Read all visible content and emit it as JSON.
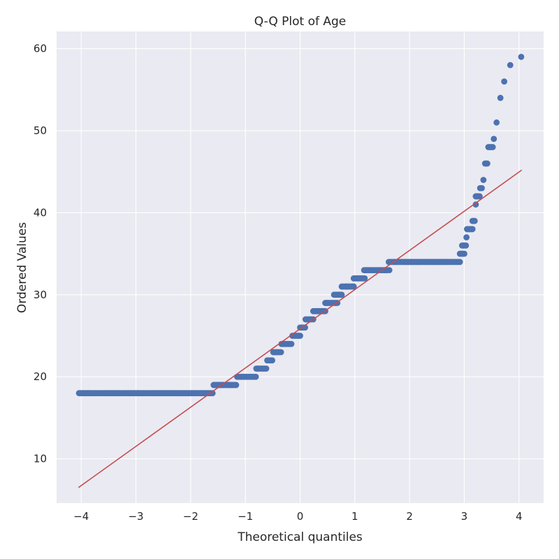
{
  "chart_data": {
    "type": "scatter",
    "title": "Q-Q Plot of Age",
    "xlabel": "Theoretical quantiles",
    "ylabel": "Ordered Values",
    "xlim": [
      -4.45,
      4.45
    ],
    "ylim": [
      4.6,
      62.1
    ],
    "x_ticks": [
      -4,
      -3,
      -2,
      -1,
      0,
      1,
      2,
      3,
      4
    ],
    "x_tick_labels": [
      "−4",
      "−3",
      "−2",
      "−1",
      "0",
      "1",
      "2",
      "3",
      "4"
    ],
    "y_ticks": [
      10,
      20,
      30,
      40,
      50,
      60
    ],
    "y_tick_labels": [
      "10",
      "20",
      "30",
      "40",
      "50",
      "60"
    ],
    "grid": true,
    "colors": {
      "points": "#4C72B0",
      "fit_line": "#C44E52",
      "background": "#EAEAF2",
      "grid": "#FFFFFF"
    },
    "series": [
      {
        "kind": "points",
        "segments": [
          {
            "y": 18,
            "x": [
              -4.04,
              -3.84,
              -3.72,
              -3.65,
              -3.58,
              -3.52,
              -3.46,
              -3.4,
              -3.34,
              -3.28,
              -3.22,
              -3.16,
              -3.1,
              -3.04,
              -2.98,
              -2.9,
              -2.8,
              -2.7,
              -2.6,
              -2.5,
              -2.4,
              -2.3,
              -2.2,
              -2.1,
              -2.0,
              -1.9,
              -1.8,
              -1.72,
              -1.66,
              -1.6
            ]
          },
          {
            "y": 19,
            "x": [
              -1.58,
              -1.52,
              -1.46,
              -1.4,
              -1.34,
              -1.28,
              -1.22,
              -1.17
            ]
          },
          {
            "y": 20,
            "x": [
              -1.15,
              -1.09,
              -1.03,
              -0.97,
              -0.91,
              -0.85,
              -0.81
            ]
          },
          {
            "y": 21,
            "x": [
              -0.8,
              -0.75,
              -0.7,
              -0.65,
              -0.62
            ]
          },
          {
            "y": 22,
            "x": [
              -0.6,
              -0.55,
              -0.51
            ]
          },
          {
            "y": 23,
            "x": [
              -0.49,
              -0.44,
              -0.38,
              -0.35
            ]
          },
          {
            "y": 24,
            "x": [
              -0.34,
              -0.28,
              -0.22,
              -0.18,
              -0.16
            ]
          },
          {
            "y": 25,
            "x": [
              -0.14,
              -0.09,
              -0.04,
              0.0
            ]
          },
          {
            "y": 26,
            "x": [
              0.0,
              0.05,
              0.09
            ]
          },
          {
            "y": 27,
            "x": [
              0.1,
              0.15,
              0.2,
              0.24
            ]
          },
          {
            "y": 28,
            "x": [
              0.24,
              0.3,
              0.36,
              0.42,
              0.46
            ]
          },
          {
            "y": 29,
            "x": [
              0.46,
              0.52,
              0.58,
              0.63,
              0.68
            ]
          },
          {
            "y": 30,
            "x": [
              0.62,
              0.67,
              0.72,
              0.76
            ]
          },
          {
            "y": 31,
            "x": [
              0.76,
              0.82,
              0.88,
              0.94,
              0.98
            ]
          },
          {
            "y": 32,
            "x": [
              0.98,
              1.04,
              1.1,
              1.15,
              1.18
            ]
          },
          {
            "y": 33,
            "x": [
              1.17,
              1.23,
              1.29,
              1.35,
              1.41,
              1.47,
              1.53,
              1.59,
              1.63
            ]
          },
          {
            "y": 34,
            "x": [
              1.62,
              1.7,
              1.8,
              1.9,
              2.0,
              2.1,
              2.2,
              2.3,
              2.4,
              2.5,
              2.6,
              2.7,
              2.8,
              2.87,
              2.92
            ]
          },
          {
            "y": 35,
            "x": [
              2.92,
              2.96,
              3.0
            ]
          },
          {
            "y": 36,
            "x": [
              2.96,
              3.0,
              3.03
            ]
          },
          {
            "y": 37,
            "x": [
              3.04
            ]
          },
          {
            "y": 38,
            "x": [
              3.05,
              3.09,
              3.13,
              3.15
            ]
          },
          {
            "y": 39,
            "x": [
              3.15,
              3.19
            ]
          },
          {
            "y": 41,
            "x": [
              3.21
            ]
          },
          {
            "y": 42,
            "x": [
              3.21,
              3.25,
              3.28
            ]
          },
          {
            "y": 43,
            "x": [
              3.29,
              3.32
            ]
          },
          {
            "y": 44,
            "x": [
              3.35
            ]
          },
          {
            "y": 46,
            "x": [
              3.38,
              3.42
            ]
          },
          {
            "y": 48,
            "x": [
              3.44,
              3.48,
              3.52
            ]
          },
          {
            "y": 49,
            "x": [
              3.54
            ]
          },
          {
            "y": 51,
            "x": [
              3.59
            ]
          },
          {
            "y": 54,
            "x": [
              3.66
            ]
          },
          {
            "y": 56,
            "x": [
              3.73
            ]
          },
          {
            "y": 58,
            "x": [
              3.84
            ]
          },
          {
            "y": 59,
            "x": [
              4.04
            ]
          }
        ]
      },
      {
        "kind": "fit_line",
        "x": [
          -4.05,
          4.05
        ],
        "y": [
          6.5,
          45.2
        ]
      }
    ]
  }
}
